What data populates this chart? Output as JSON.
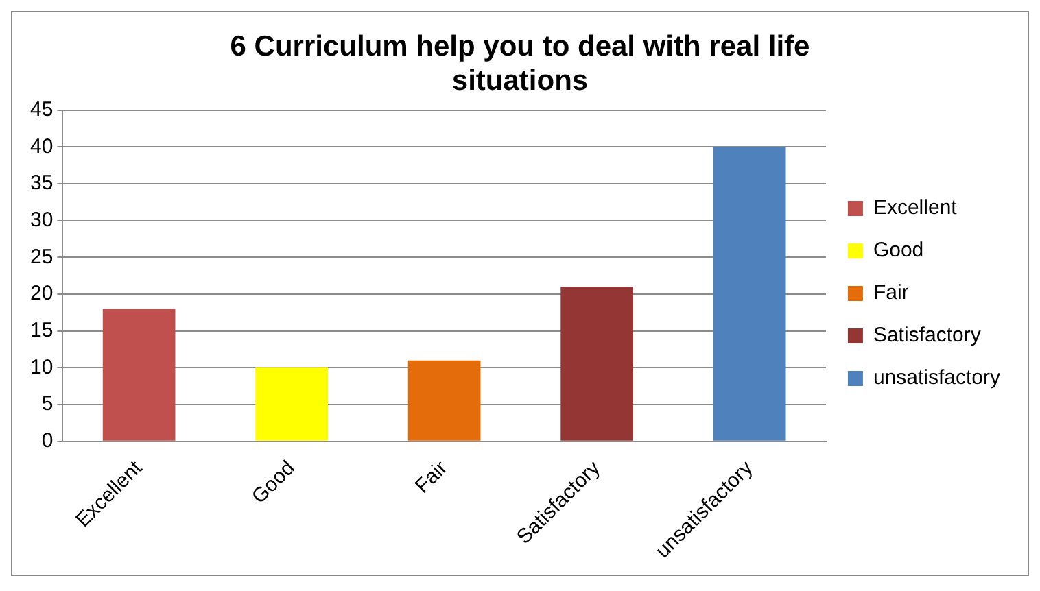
{
  "chart_data": {
    "type": "bar",
    "title": "6 Curriculum help you to deal with real life situations",
    "categories": [
      "Excellent",
      "Good",
      "Fair",
      "Satisfactory",
      "unsatisfactory"
    ],
    "series": [
      {
        "name": "Excellent",
        "color": "#c0504d",
        "values": [
          18,
          null,
          null,
          null,
          null
        ]
      },
      {
        "name": "Good",
        "color": "#ffff00",
        "values": [
          null,
          10,
          null,
          null,
          null
        ]
      },
      {
        "name": "Fair",
        "color": "#e46c0a",
        "values": [
          null,
          null,
          11,
          null,
          null
        ]
      },
      {
        "name": "Satisfactory",
        "color": "#943634",
        "values": [
          null,
          null,
          null,
          21,
          null
        ]
      },
      {
        "name": "unsatisfactory",
        "color": "#4f81bd",
        "values": [
          null,
          null,
          null,
          null,
          40
        ]
      }
    ],
    "ylim": [
      0,
      45
    ],
    "yticks": [
      0,
      5,
      10,
      15,
      20,
      25,
      30,
      35,
      40,
      45
    ],
    "grid": "y",
    "legend": "right"
  }
}
